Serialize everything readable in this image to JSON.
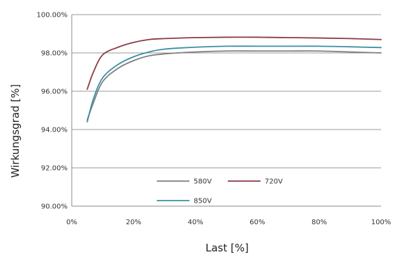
{
  "chart_data": {
    "type": "line",
    "xlabel": "Last [%]",
    "ylabel": "Wirkungsgrad [%]",
    "xlim": [
      0,
      100
    ],
    "ylim": [
      90,
      100
    ],
    "x_ticks": [
      "0%",
      "20%",
      "40%",
      "60%",
      "80%",
      "100%"
    ],
    "y_ticks": [
      "90.00%",
      "92.00%",
      "94.00%",
      "96.00%",
      "98.00%",
      "100.00%"
    ],
    "grid": "horizontal",
    "legend_position": "bottom-center",
    "series": [
      {
        "name": "580V",
        "color": "#7f7f7f",
        "x": [
          5,
          7,
          10,
          15,
          20,
          25,
          30,
          40,
          50,
          60,
          70,
          80,
          90,
          100
        ],
        "y": [
          94.5,
          95.4,
          96.5,
          97.2,
          97.6,
          97.85,
          97.95,
          98.05,
          98.1,
          98.1,
          98.1,
          98.1,
          98.05,
          98.0
        ]
      },
      {
        "name": "720V",
        "color": "#8b3a46",
        "x": [
          5,
          7,
          10,
          15,
          20,
          25,
          30,
          40,
          50,
          60,
          70,
          80,
          90,
          100
        ],
        "y": [
          96.1,
          97.0,
          97.9,
          98.3,
          98.55,
          98.7,
          98.75,
          98.8,
          98.82,
          98.82,
          98.8,
          98.78,
          98.75,
          98.7
        ]
      },
      {
        "name": "850V",
        "color": "#3a8fa3",
        "x": [
          5,
          7,
          10,
          15,
          20,
          25,
          30,
          40,
          50,
          60,
          70,
          80,
          90,
          100
        ],
        "y": [
          94.4,
          95.6,
          96.7,
          97.4,
          97.8,
          98.05,
          98.2,
          98.3,
          98.35,
          98.35,
          98.35,
          98.35,
          98.32,
          98.28
        ]
      }
    ]
  }
}
